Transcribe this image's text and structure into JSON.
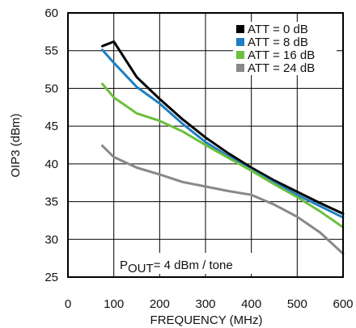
{
  "chart_data": {
    "type": "line",
    "xlabel": "FREQUENCY (MHz)",
    "ylabel": "OIP3 (dBm)",
    "xlim": [
      0,
      600
    ],
    "ylim": [
      25,
      60
    ],
    "x_ticks": [
      0,
      100,
      200,
      300,
      400,
      500,
      600
    ],
    "y_ticks": [
      25,
      30,
      35,
      40,
      45,
      50,
      55,
      60
    ],
    "grid": true,
    "legend_position": "top-right",
    "annotation": {
      "prefix": "P",
      "subscript": "OUT",
      "suffix": "= 4 dBm / tone"
    },
    "series": [
      {
        "name": "ATT = 0 dB",
        "color": "#000000",
        "x": [
          75,
          100,
          150,
          200,
          250,
          300,
          350,
          400,
          450,
          500,
          550,
          600
        ],
        "y": [
          55.6,
          56.2,
          51.5,
          48.6,
          45.9,
          43.5,
          41.4,
          39.5,
          37.8,
          36.3,
          34.8,
          33.4
        ]
      },
      {
        "name": "ATT = 8 dB",
        "color": "#1f7fc4",
        "x": [
          75,
          100,
          150,
          200,
          250,
          300,
          350,
          400,
          450,
          500,
          550,
          600
        ],
        "y": [
          55.1,
          53.4,
          50.2,
          48.0,
          45.3,
          42.9,
          41.0,
          39.2,
          37.5,
          35.9,
          34.4,
          32.9
        ]
      },
      {
        "name": "ATT = 16 dB",
        "color": "#6cbf3d",
        "x": [
          75,
          100,
          150,
          200,
          250,
          300,
          350,
          400,
          450,
          500,
          550,
          600
        ],
        "y": [
          50.6,
          48.8,
          46.7,
          45.7,
          44.3,
          42.5,
          40.8,
          39.1,
          37.3,
          35.6,
          33.7,
          31.6
        ]
      },
      {
        "name": "ATT = 24 dB",
        "color": "#888888",
        "x": [
          75,
          100,
          150,
          200,
          250,
          300,
          350,
          400,
          450,
          500,
          550,
          600
        ],
        "y": [
          42.4,
          40.9,
          39.5,
          38.6,
          37.6,
          37.0,
          36.4,
          35.9,
          34.6,
          33.0,
          30.9,
          28.1
        ]
      }
    ]
  }
}
